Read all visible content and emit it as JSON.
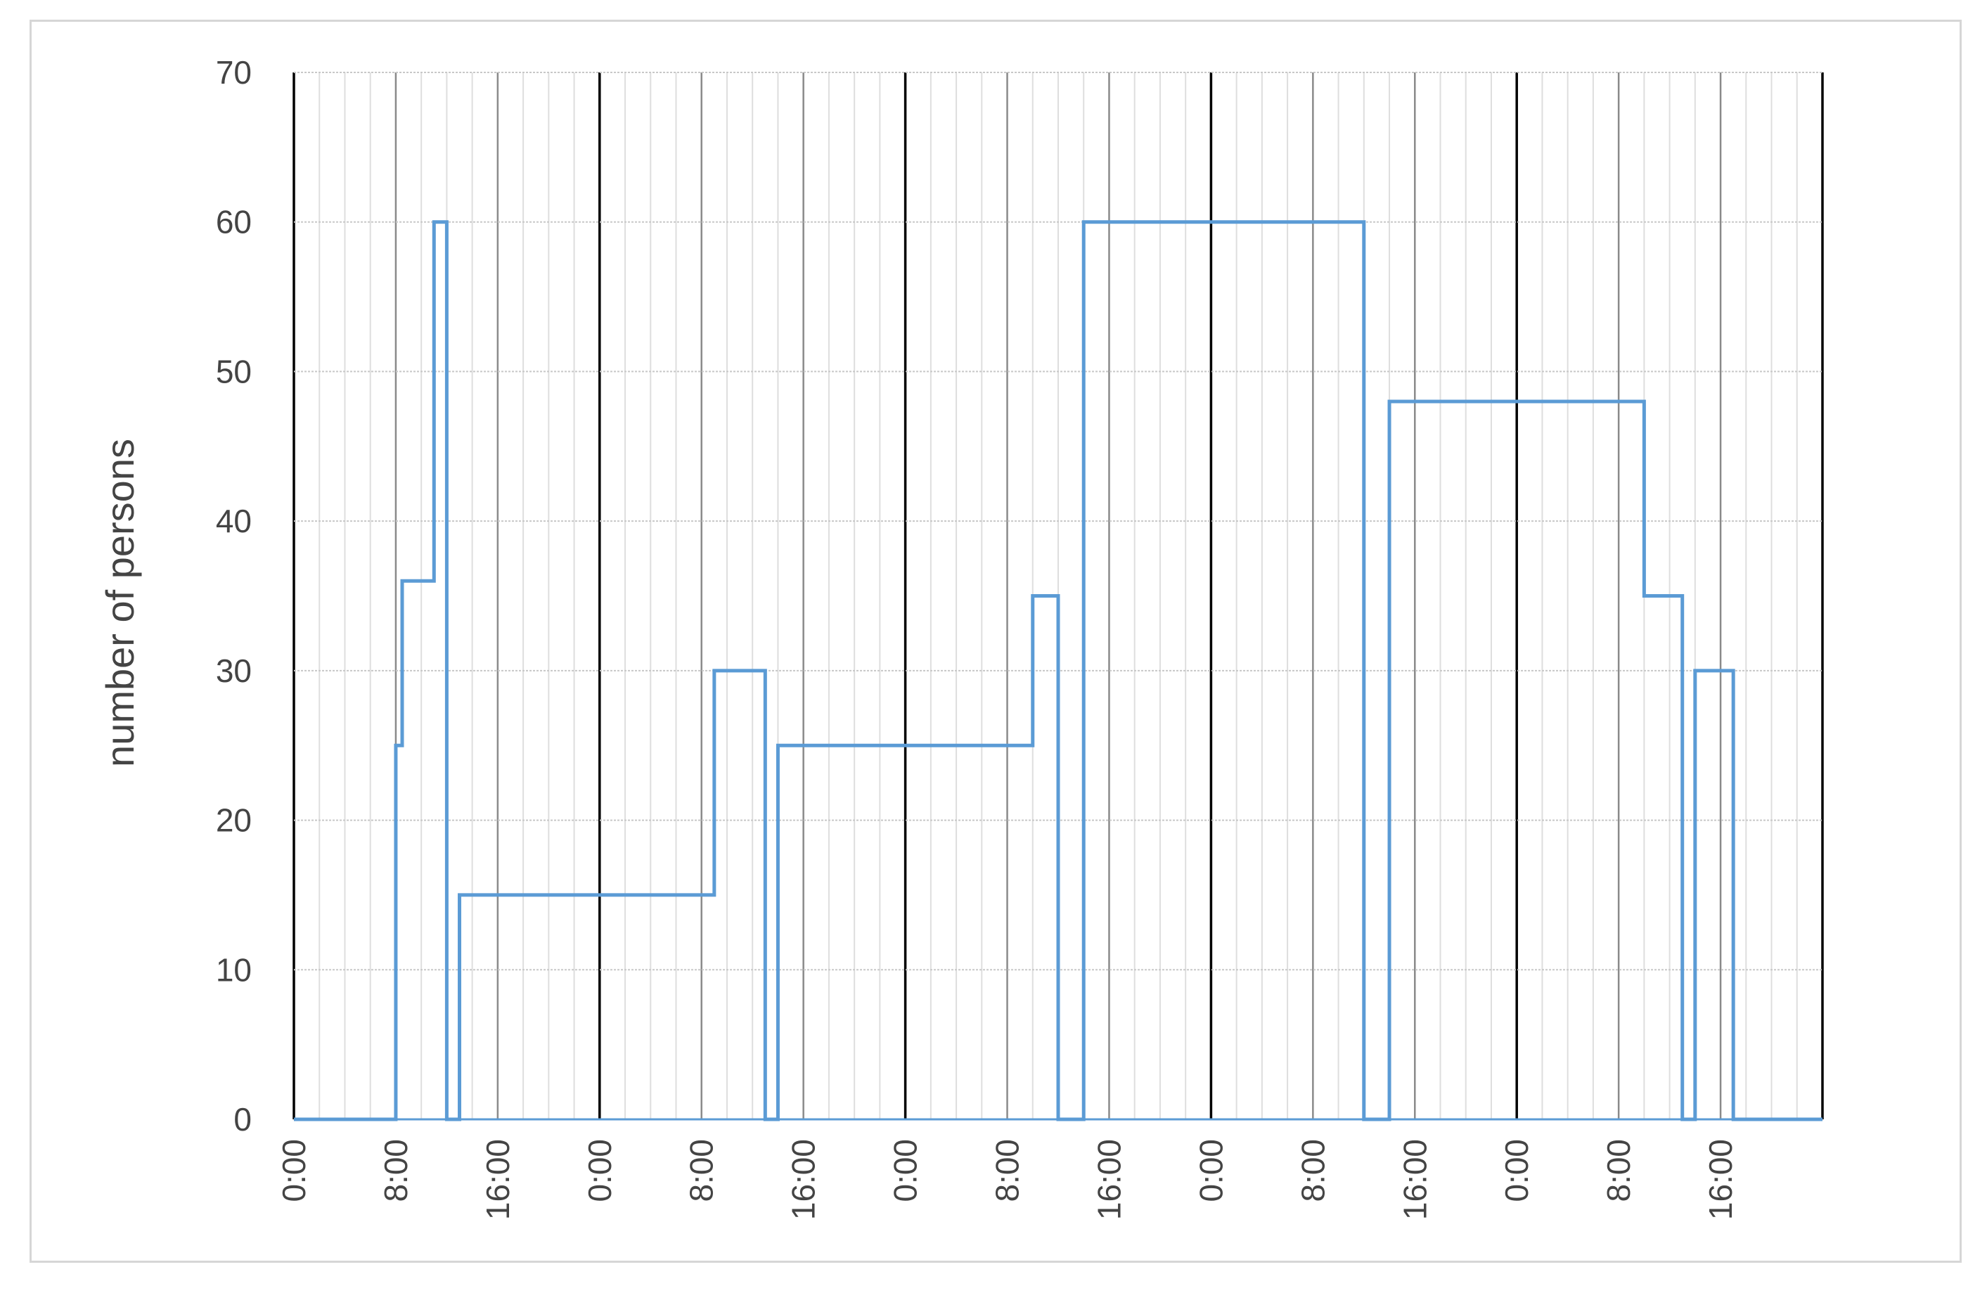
{
  "chart_data": {
    "type": "line",
    "title": "",
    "xlabel": "",
    "ylabel": "number of persons",
    "ylim": [
      0,
      70
    ],
    "yticks": [
      "0",
      "10",
      "20",
      "30",
      "40",
      "50",
      "60",
      "70"
    ],
    "xlim_hours": [
      0,
      120
    ],
    "xticks": [
      "0:00",
      "8:00",
      "16:00",
      "0:00",
      "8:00",
      "16:00",
      "0:00",
      "8:00",
      "16:00",
      "0:00",
      "8:00",
      "16:00",
      "0:00",
      "8:00",
      "16:00"
    ],
    "grid": true,
    "legend": "none",
    "series": [
      {
        "line_style": "step",
        "color": "#5b9bd5",
        "segments": [
          {
            "from": "Day 1 8:00",
            "to": "Day 1 8:30",
            "value": 25
          },
          {
            "from": "Day 1 8:30",
            "to": "Day 1 11:00",
            "value": 36
          },
          {
            "from": "Day 1 11:00",
            "to": "Day 1 12:00",
            "value": 60
          },
          {
            "from": "Day 1 12:00",
            "to": "Day 1 13:00",
            "value": 0
          },
          {
            "from": "Day 1 13:00",
            "to": "Day 1 16:00",
            "value": 15
          },
          {
            "from": "Day 2 9:00",
            "to": "Day 2 13:00",
            "value": 30
          },
          {
            "from": "Day 2 13:00",
            "to": "Day 2 14:00",
            "value": 0
          },
          {
            "from": "Day 2 14:00",
            "to": "Day 2 17:00",
            "value": 25
          },
          {
            "from": "Day 3 10:00",
            "to": "Day 3 12:00",
            "value": 35
          },
          {
            "from": "Day 3 12:00",
            "to": "Day 3 14:00",
            "value": 0
          },
          {
            "from": "Day 3 14:00",
            "to": "Day 3 17:00",
            "value": 60
          },
          {
            "from": "Day 4 9:00",
            "to": "Day 4 12:00",
            "value": 60
          },
          {
            "from": "Day 4 12:00",
            "to": "Day 4 14:00",
            "value": 0
          },
          {
            "from": "Day 4 14:00",
            "to": "Day 4 17:00",
            "value": 48
          },
          {
            "from": "Day 5 10:00",
            "to": "Day 5 13:00",
            "value": 35
          },
          {
            "from": "Day 5 13:00",
            "to": "Day 5 14:00",
            "value": 0
          },
          {
            "from": "Day 5 14:00",
            "to": "Day 5 17:00",
            "value": 30
          }
        ]
      }
    ]
  }
}
